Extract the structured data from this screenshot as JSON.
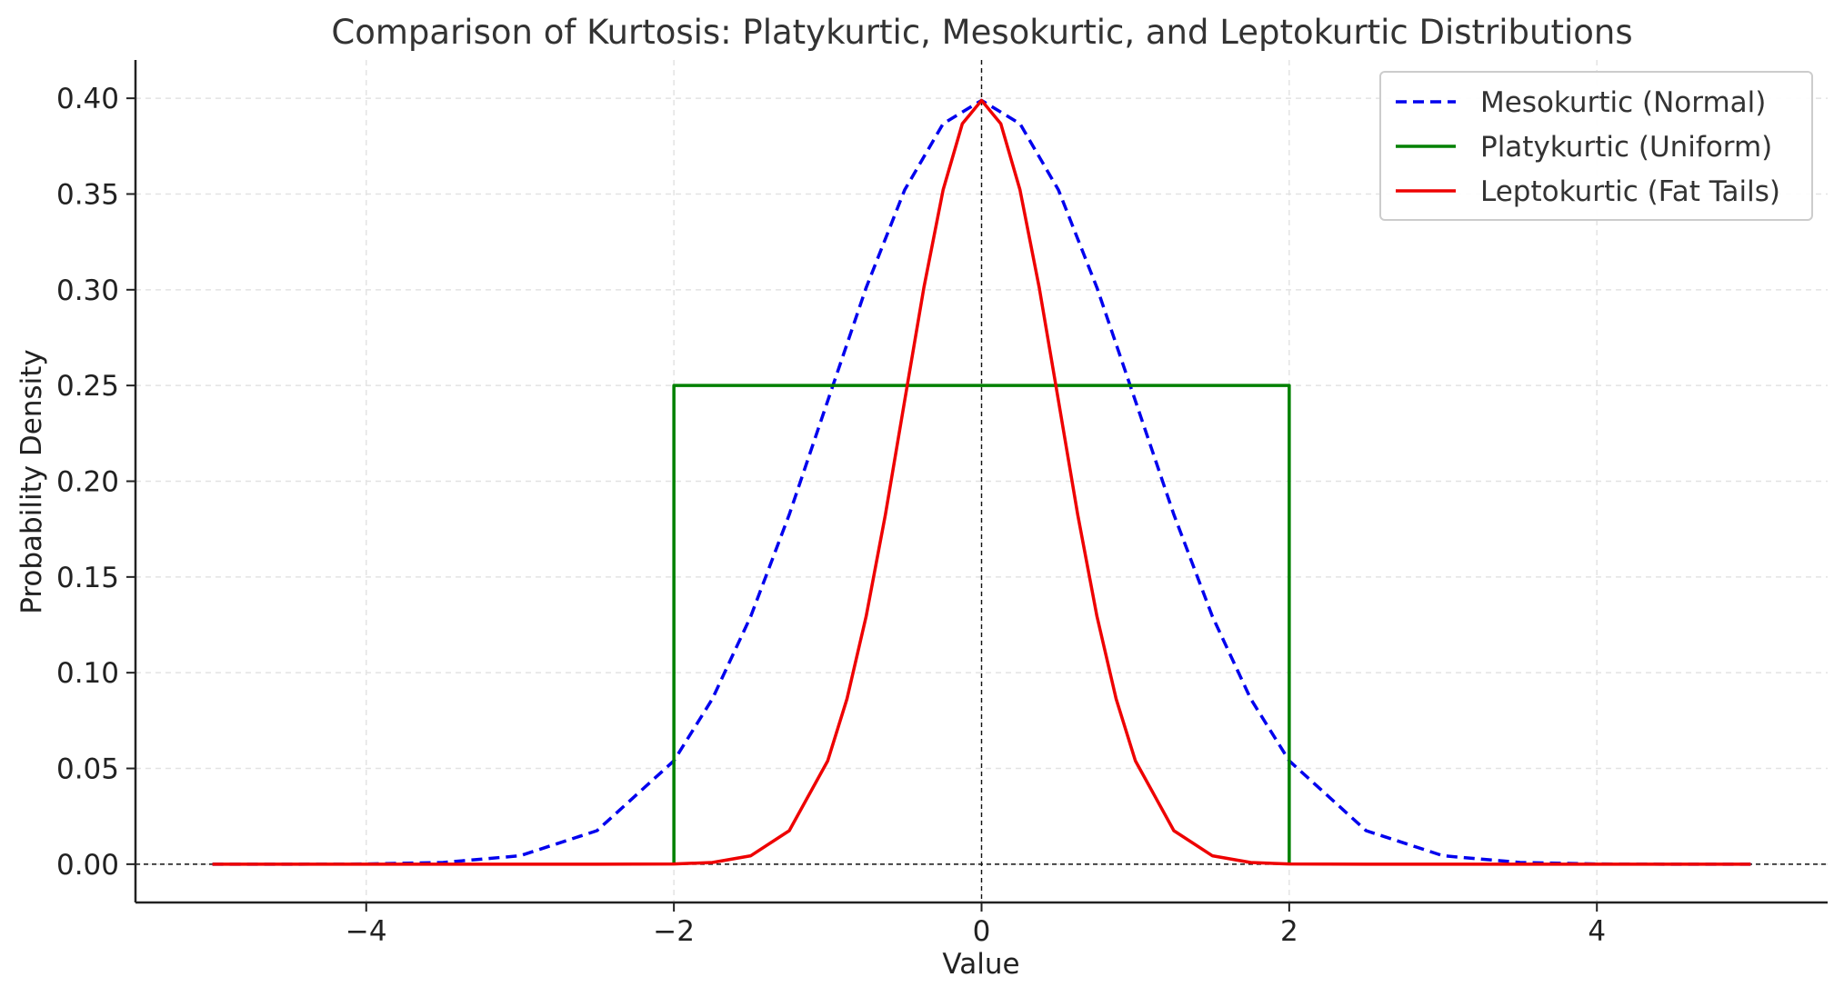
{
  "chart_data": {
    "type": "line",
    "title": "Comparison of Kurtosis: Platykurtic, Mesokurtic, and Leptokurtic Distributions",
    "xlabel": "Value",
    "ylabel": "Probability Density",
    "xlim": [
      -5.5,
      5.5
    ],
    "ylim": [
      -0.02,
      0.42
    ],
    "xticks": [
      -4,
      -2,
      0,
      2,
      4
    ],
    "xtick_labels": [
      "−4",
      "−2",
      "0",
      "2",
      "4"
    ],
    "yticks": [
      0.0,
      0.05,
      0.1,
      0.15,
      0.2,
      0.25,
      0.3,
      0.35,
      0.4
    ],
    "ytick_labels": [
      "0.00",
      "0.05",
      "0.10",
      "0.15",
      "0.20",
      "0.25",
      "0.30",
      "0.35",
      "0.40"
    ],
    "grid": true,
    "reference_lines": {
      "horizontal_y": 0,
      "vertical_x": 0
    },
    "legend_position": "top-right",
    "series": [
      {
        "name": "Mesokurtic (Normal)",
        "color": "#0000ee",
        "style": "dashed",
        "x": [
          -5,
          -4.5,
          -4,
          -3.5,
          -3,
          -2.5,
          -2,
          -1.75,
          -1.5,
          -1.25,
          -1,
          -0.75,
          -0.5,
          -0.25,
          0,
          0.25,
          0.5,
          0.75,
          1,
          1.25,
          1.5,
          1.75,
          2,
          2.5,
          3,
          3.5,
          4,
          4.5,
          5
        ],
        "y": [
          0.0,
          0.0,
          0.0001,
          0.0009,
          0.0044,
          0.0175,
          0.054,
          0.0863,
          0.1295,
          0.1826,
          0.242,
          0.3011,
          0.3521,
          0.3867,
          0.3989,
          0.3867,
          0.3521,
          0.3011,
          0.242,
          0.1826,
          0.1295,
          0.0863,
          0.054,
          0.0175,
          0.0044,
          0.0009,
          0.0001,
          0.0,
          0.0
        ]
      },
      {
        "name": "Platykurtic (Uniform)",
        "color": "#008000",
        "style": "solid",
        "x": [
          -2,
          -2,
          2,
          2
        ],
        "y": [
          0.0,
          0.25,
          0.25,
          0.0
        ]
      },
      {
        "name": "Leptokurtic (Fat Tails)",
        "color": "#ee0000",
        "style": "solid",
        "x": [
          -5,
          -2.5,
          -2,
          -1.75,
          -1.5,
          -1.25,
          -1,
          -0.875,
          -0.75,
          -0.625,
          -0.5,
          -0.375,
          -0.25,
          -0.125,
          0,
          0.125,
          0.25,
          0.375,
          0.5,
          0.625,
          0.75,
          0.875,
          1,
          1.25,
          1.5,
          1.75,
          2,
          2.5,
          5
        ],
        "y": [
          0.0,
          0.0,
          0.0001,
          0.0009,
          0.0044,
          0.0175,
          0.054,
          0.0863,
          0.1295,
          0.1826,
          0.242,
          0.3011,
          0.3521,
          0.3867,
          0.3989,
          0.3867,
          0.3521,
          0.3011,
          0.242,
          0.1826,
          0.1295,
          0.0863,
          0.054,
          0.0175,
          0.0044,
          0.0009,
          0.0001,
          0.0,
          0.0
        ]
      }
    ]
  }
}
